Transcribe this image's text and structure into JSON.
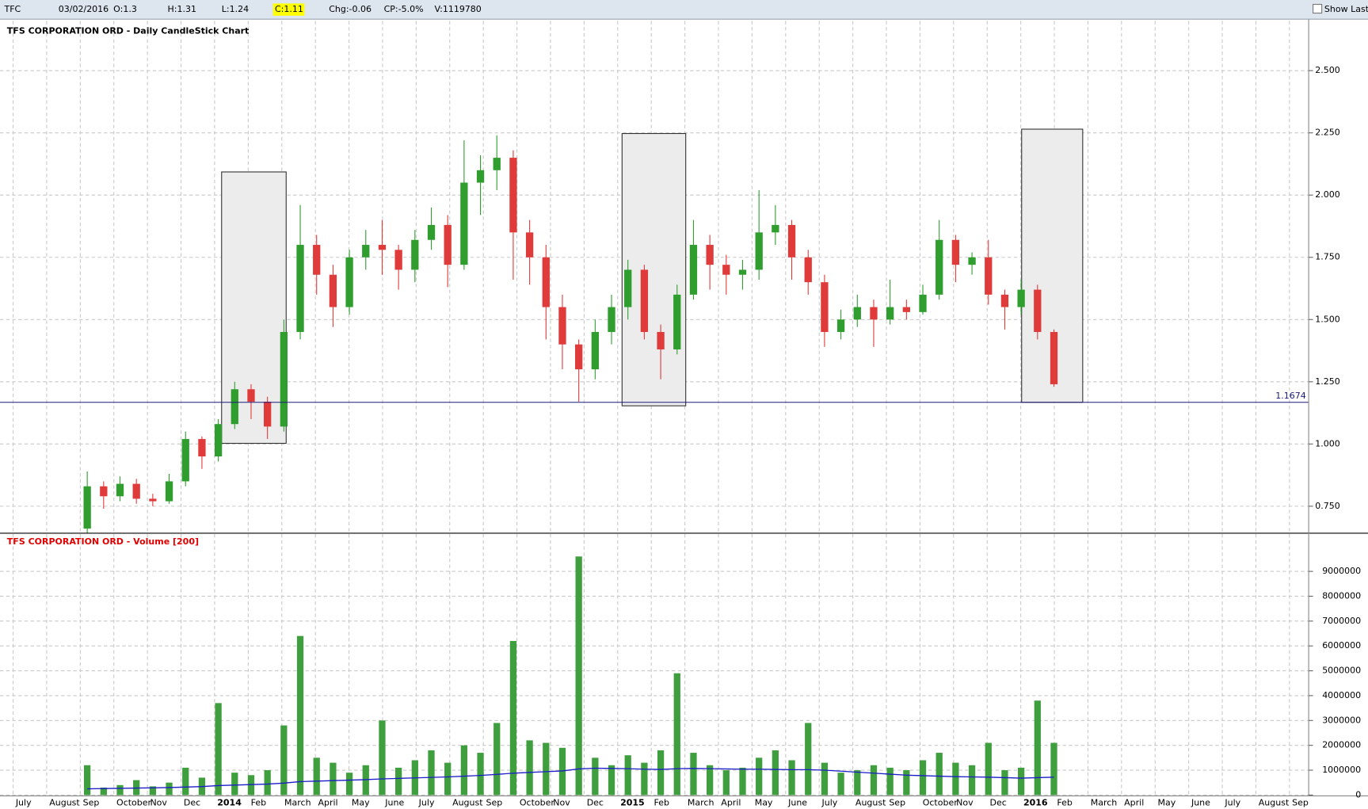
{
  "header": {
    "symbol": "TFC",
    "date": "03/02/2016",
    "open": "O:1.3",
    "high": "H:1.31",
    "low": "L:1.24",
    "close": "C:1.11",
    "change": "Chg:-0.06",
    "change_percent": "CP:-5.0%",
    "volume": "V:1119780",
    "show_last": "Show Last"
  },
  "x_axis_labels": [
    "July",
    "August",
    "Sep",
    "October",
    "Nov",
    "Dec",
    "2014",
    "Feb",
    "March",
    "April",
    "May",
    "June",
    "July",
    "August",
    "Sep",
    "October",
    "Nov",
    "Dec",
    "2015",
    "Feb",
    "March",
    "April",
    "May",
    "June",
    "July",
    "August",
    "Sep",
    "October",
    "Nov",
    "Dec",
    "2016",
    "Feb",
    "March",
    "April",
    "May",
    "June",
    "July",
    "August",
    "Sep"
  ],
  "chart_data": [
    {
      "type": "candlestick",
      "title": "TFS CORPORATION ORD - Daily CandleStick Chart",
      "up_color": "#2f9e2f",
      "down_color": "#e03b3b",
      "grid": true,
      "open": [
        0.66,
        0.83,
        0.79,
        0.84,
        0.78,
        0.77,
        0.85,
        1.02,
        0.95,
        1.08,
        1.22,
        1.17,
        1.07,
        1.45,
        1.8,
        1.68,
        1.55,
        1.75,
        1.8,
        1.78,
        1.7,
        1.82,
        1.88,
        1.72,
        2.05,
        2.1,
        2.15,
        1.85,
        1.75,
        1.55,
        1.4,
        1.3,
        1.45,
        1.55,
        1.7,
        1.45,
        1.38,
        1.6,
        1.8,
        1.72,
        1.68,
        1.7,
        1.85,
        1.88,
        1.75,
        1.65,
        1.45,
        1.5,
        1.55,
        1.5,
        1.55,
        1.53,
        1.6,
        1.82,
        1.72,
        1.75,
        1.6,
        1.55,
        1.62,
        1.45
      ],
      "high": [
        0.89,
        0.85,
        0.87,
        0.86,
        0.8,
        0.88,
        1.05,
        1.03,
        1.1,
        1.25,
        1.24,
        1.19,
        1.5,
        1.96,
        1.84,
        1.72,
        1.78,
        1.86,
        1.9,
        1.8,
        1.86,
        1.95,
        1.92,
        2.22,
        2.16,
        2.24,
        2.18,
        1.9,
        1.8,
        1.6,
        1.42,
        1.5,
        1.6,
        1.74,
        1.72,
        1.48,
        1.64,
        1.9,
        1.84,
        1.76,
        1.74,
        2.02,
        1.96,
        1.9,
        1.78,
        1.68,
        1.54,
        1.6,
        1.58,
        1.66,
        1.58,
        1.64,
        1.9,
        1.84,
        1.77,
        1.82,
        1.62,
        1.66,
        1.64,
        1.46
      ],
      "low": [
        0.64,
        0.74,
        0.77,
        0.76,
        0.75,
        0.76,
        0.83,
        0.9,
        0.93,
        1.06,
        1.1,
        1.02,
        1.05,
        1.42,
        1.6,
        1.47,
        1.52,
        1.7,
        1.68,
        1.62,
        1.65,
        1.78,
        1.63,
        1.7,
        1.92,
        2.02,
        1.66,
        1.64,
        1.42,
        1.3,
        1.17,
        1.26,
        1.4,
        1.5,
        1.42,
        1.26,
        1.36,
        1.58,
        1.62,
        1.6,
        1.62,
        1.66,
        1.8,
        1.66,
        1.6,
        1.39,
        1.42,
        1.47,
        1.39,
        1.48,
        1.5,
        1.52,
        1.58,
        1.65,
        1.68,
        1.56,
        1.46,
        1.52,
        1.42,
        1.23
      ],
      "close": [
        0.83,
        0.79,
        0.84,
        0.78,
        0.77,
        0.85,
        1.02,
        0.95,
        1.08,
        1.22,
        1.17,
        1.07,
        1.45,
        1.8,
        1.68,
        1.55,
        1.75,
        1.8,
        1.78,
        1.7,
        1.82,
        1.88,
        1.72,
        2.05,
        2.1,
        2.15,
        1.85,
        1.75,
        1.55,
        1.4,
        1.3,
        1.45,
        1.55,
        1.7,
        1.45,
        1.38,
        1.6,
        1.8,
        1.72,
        1.68,
        1.7,
        1.85,
        1.88,
        1.75,
        1.65,
        1.45,
        1.5,
        1.55,
        1.5,
        1.55,
        1.53,
        1.6,
        1.82,
        1.72,
        1.75,
        1.6,
        1.55,
        1.62,
        1.45,
        1.24
      ],
      "hline": 1.1674,
      "hline_color": "#1a1a7a",
      "ylim": [
        0.645,
        2.626
      ],
      "yticks": [
        {
          "value": 0.75,
          "label": "0.750"
        },
        {
          "value": 1.0,
          "label": "1.000"
        },
        {
          "value": 1.25,
          "label": "1.250"
        },
        {
          "value": 1.5,
          "label": "1.500"
        },
        {
          "value": 1.75,
          "label": "1.750"
        },
        {
          "value": 2.0,
          "label": "2.000"
        },
        {
          "value": 2.25,
          "label": "2.250"
        },
        {
          "value": 2.5,
          "label": "2.500"
        }
      ]
    },
    {
      "type": "bar",
      "title": "TFS CORPORATION ORD - Volume [200]",
      "grid": true,
      "series": [
        {
          "type": "bar",
          "color": "#3f9f3f",
          "values": [
            1200000,
            300000,
            400000,
            600000,
            350000,
            500000,
            1100000,
            700000,
            3700000,
            900000,
            800000,
            1000000,
            2800000,
            6400000,
            1500000,
            1300000,
            900000,
            1200000,
            3000000,
            1100000,
            1400000,
            1800000,
            1300000,
            2000000,
            1700000,
            2900000,
            6200000,
            2200000,
            2100000,
            1900000,
            9600000,
            1500000,
            1200000,
            1600000,
            1300000,
            1800000,
            4900000,
            1700000,
            1200000,
            1000000,
            1100000,
            1500000,
            1800000,
            1400000,
            2900000,
            1300000,
            900000,
            1000000,
            1200000,
            1100000,
            1000000,
            1400000,
            1700000,
            1300000,
            1200000,
            2100000,
            1000000,
            1100000,
            3800000,
            2100000
          ]
        },
        {
          "type": "line",
          "color": "#1c1cc8",
          "values": [
            250000,
            260000,
            270000,
            280000,
            290000,
            300000,
            320000,
            340000,
            380000,
            400000,
            420000,
            440000,
            480000,
            540000,
            560000,
            580000,
            600000,
            620000,
            650000,
            670000,
            690000,
            710000,
            730000,
            760000,
            790000,
            830000,
            880000,
            910000,
            940000,
            970000,
            1050000,
            1080000,
            1070000,
            1060000,
            1040000,
            1030000,
            1060000,
            1070000,
            1060000,
            1050000,
            1040000,
            1040000,
            1030000,
            1020000,
            1020000,
            1000000,
            960000,
            920000,
            880000,
            840000,
            800000,
            780000,
            760000,
            740000,
            730000,
            720000,
            700000,
            680000,
            700000,
            720000
          ]
        }
      ],
      "ylim": [
        0,
        10500000
      ],
      "yticks": [
        0,
        1000000,
        2000000,
        3000000,
        4000000,
        5000000,
        6000000,
        7000000,
        8000000,
        9000000
      ]
    }
  ]
}
